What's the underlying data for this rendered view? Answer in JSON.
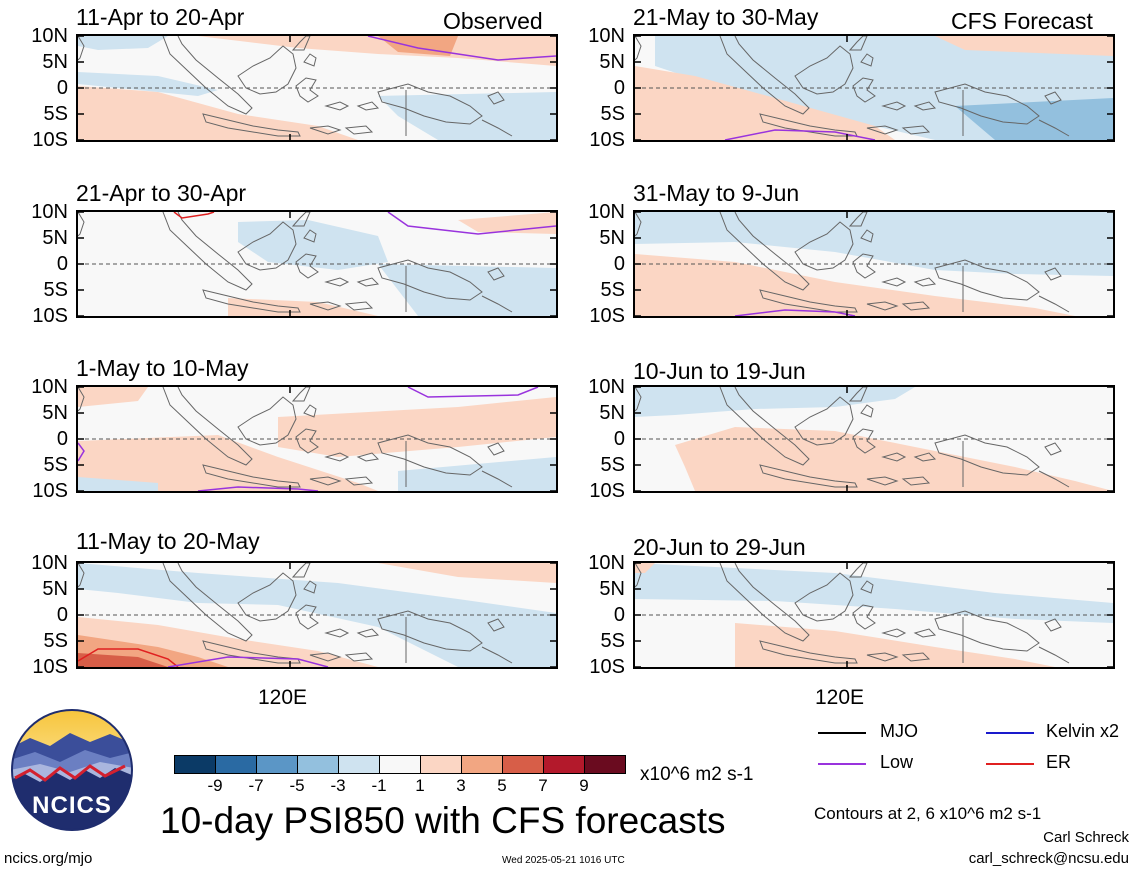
{
  "title": "10-day PSI850 with CFS forecasts",
  "label_observed": "Observed",
  "label_forecast": "CFS Forecast",
  "y_ticks": [
    "10N",
    "5N",
    "0",
    "5S",
    "10S"
  ],
  "x_tick": "120E",
  "units": "x10^6 m2 s-1",
  "colorbar": {
    "ticks": [
      "-9",
      "-7",
      "-5",
      "-3",
      "-1",
      "1",
      "3",
      "5",
      "7",
      "9"
    ],
    "colors": [
      "#0b3a66",
      "#2a6aa3",
      "#5b96c6",
      "#93c0de",
      "#cfe3f0",
      "#f8f8f8",
      "#fbd6c4",
      "#f2a682",
      "#d75e48",
      "#b3192b",
      "#6a0b1f"
    ]
  },
  "legend": {
    "mjo": "MJO",
    "kelvin": "Kelvin x2",
    "low": "Low",
    "er": "ER",
    "mjo_color": "#000000",
    "kelvin_color": "#1a1acc",
    "low_color": "#9933dd",
    "er_color": "#e02020"
  },
  "contours_note": "Contours at 2, 6 x10^6 m2 s-1",
  "author": "Carl Schreck",
  "email": "carl_schreck@ncsu.edu",
  "site": "ncics.org/mjo",
  "timestamp": "Wed 2025-05-21 1016 UTC",
  "logo_text": "NCICS",
  "chart_data": {
    "type": "heatmap",
    "panels_observed": [
      "11-Apr to 20-Apr",
      "21-Apr to 30-Apr",
      "1-May to 10-May",
      "11-May to 20-May"
    ],
    "panels_forecast": [
      "21-May to 30-May",
      "31-May to 9-Jun",
      "10-Jun to 19-Jun",
      "20-Jun to 29-Jun"
    ]
  }
}
